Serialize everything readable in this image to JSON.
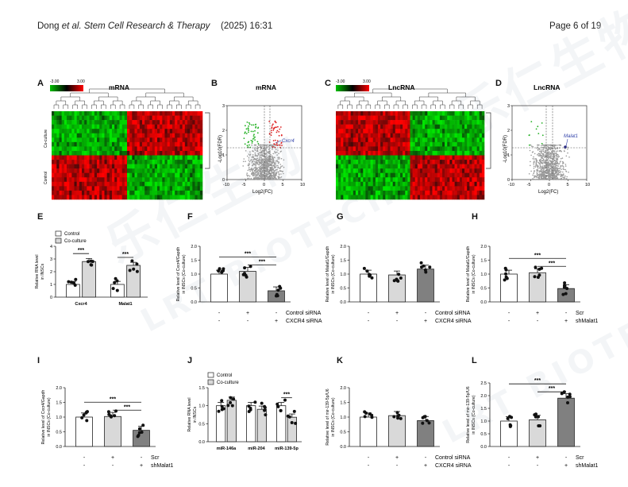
{
  "header": {
    "author": "Dong",
    "et_al": "et al.",
    "journal": "Stem Cell Research & Therapy",
    "year_ref": "(2025) 16:31",
    "page": "Page 6 of 19"
  },
  "watermark": {
    "line1": "乐仁生物",
    "line2": "LRT BIOTECH"
  },
  "panels": {
    "A": {
      "letter": "A",
      "title": "mRNA",
      "scale_min": "-3.00",
      "scale_max": "3.00",
      "row_labels": [
        "Co-culture",
        "Control"
      ]
    },
    "B": {
      "letter": "B",
      "title": "mRNA",
      "ylabel": "-Log10(FDR)",
      "xlabel": "Log2(FC)",
      "annotation": "Cxcr4",
      "xticks": [
        "-10",
        "-5",
        "0",
        "5",
        "10"
      ],
      "yticks": [
        "0",
        "1",
        "2",
        "3"
      ]
    },
    "C": {
      "letter": "C",
      "title": "LncRNA",
      "scale_min": "-3.00",
      "scale_max": "3.00"
    },
    "D": {
      "letter": "D",
      "title": "LncRNA",
      "ylabel": "-Log10(FDR)",
      "xlabel": "Log2(FC)",
      "annotation": "Malat1",
      "xticks": [
        "-10",
        "-5",
        "0",
        "5",
        "10"
      ],
      "yticks": [
        "0",
        "1",
        "2",
        "3"
      ]
    },
    "E": {
      "letter": "E"
    },
    "F": {
      "letter": "F"
    },
    "G": {
      "letter": "G"
    },
    "H": {
      "letter": "H"
    },
    "I": {
      "letter": "I"
    },
    "J": {
      "letter": "J"
    },
    "K": {
      "letter": "K"
    },
    "L": {
      "letter": "L"
    }
  },
  "chart_data": [
    {
      "panel": "E",
      "type": "bar",
      "ylabel": "Relative RNA level in INSCs",
      "ylim": [
        0,
        4
      ],
      "yticks": [
        0,
        1,
        2,
        3,
        4
      ],
      "categories": [
        "Cxcr4",
        "Malat1"
      ],
      "series": [
        {
          "name": "Control",
          "values": [
            1.0,
            1.0
          ]
        },
        {
          "name": "Co-culture",
          "values": [
            2.8,
            2.5
          ]
        }
      ],
      "significance": [
        "***",
        "***"
      ]
    },
    {
      "panel": "F",
      "type": "bar",
      "ylabel": "Relative level of Cxcr4/Gapdh in INSCs (Co-culture)",
      "ylim": [
        0,
        2.0
      ],
      "yticks": [
        0.0,
        0.5,
        1.0,
        1.5,
        2.0
      ],
      "values": [
        1.0,
        1.1,
        0.4
      ],
      "rows": [
        {
          "label": "Control siRNA",
          "signs": [
            "-",
            "+",
            "-"
          ]
        },
        {
          "label": "CXCR4 siRNA",
          "signs": [
            "-",
            "-",
            "+"
          ]
        }
      ],
      "significance": [
        "***",
        "***"
      ]
    },
    {
      "panel": "G",
      "type": "bar",
      "ylabel": "Relative level of Malat1/Gapdh in INSCs (Co-culture)",
      "ylim": [
        0,
        2.0
      ],
      "yticks": [
        0.0,
        0.5,
        1.0,
        1.5,
        2.0
      ],
      "values": [
        1.0,
        0.97,
        1.18
      ],
      "rows": [
        {
          "label": "Control siRNA",
          "signs": [
            "-",
            "+",
            "-"
          ]
        },
        {
          "label": "CXCR4 siRNA",
          "signs": [
            "-",
            "-",
            "+"
          ]
        }
      ],
      "significance": []
    },
    {
      "panel": "H",
      "type": "bar",
      "ylabel": "Relative level of Malat1/Gapdh in INSCs (Co-culture)",
      "ylim": [
        0,
        2.0
      ],
      "yticks": [
        0.0,
        0.5,
        1.0,
        1.5,
        2.0
      ],
      "values": [
        1.0,
        1.05,
        0.48
      ],
      "rows": [
        {
          "label": "Scr",
          "signs": [
            "-",
            "+",
            "-"
          ]
        },
        {
          "label": "shMalat1",
          "signs": [
            "-",
            "-",
            "+"
          ]
        }
      ],
      "significance": [
        "***",
        "***"
      ]
    },
    {
      "panel": "I",
      "type": "bar",
      "ylabel": "Relative level of Cxcr4/Gapdh in INSCs (Co-culture)",
      "ylim": [
        0,
        2.0
      ],
      "yticks": [
        0.0,
        0.5,
        1.0,
        1.5,
        2.0
      ],
      "values": [
        1.0,
        1.02,
        0.55
      ],
      "rows": [
        {
          "label": "Scr",
          "signs": [
            "-",
            "+",
            "-"
          ]
        },
        {
          "label": "shMalat1",
          "signs": [
            "-",
            "-",
            "+"
          ]
        }
      ],
      "significance": [
        "***",
        "***"
      ]
    },
    {
      "panel": "J",
      "type": "bar",
      "ylabel": "Relative RNA level in INSCs",
      "ylim": [
        0,
        1.5
      ],
      "yticks": [
        0.0,
        0.5,
        1.0,
        1.5
      ],
      "categories": [
        "miR-146a",
        "miR-204",
        "miR-139-5p"
      ],
      "series": [
        {
          "name": "Control",
          "values": [
            1.0,
            1.0,
            1.0
          ]
        },
        {
          "name": "Co-culture",
          "values": [
            1.15,
            0.9,
            0.68
          ]
        }
      ],
      "significance": [
        "",
        "",
        "***"
      ]
    },
    {
      "panel": "K",
      "type": "bar",
      "ylabel": "Relative level of mir-139-5p/U6 in INSCs (Co-culture)",
      "ylim": [
        0,
        2.0
      ],
      "yticks": [
        0.0,
        0.5,
        1.0,
        1.5,
        2.0
      ],
      "values": [
        1.0,
        1.05,
        0.88
      ],
      "rows": [
        {
          "label": "Control siRNA",
          "signs": [
            "-",
            "+",
            "-"
          ]
        },
        {
          "label": "CXCR4 siRNA",
          "signs": [
            "-",
            "-",
            "+"
          ]
        }
      ],
      "significance": []
    },
    {
      "panel": "L",
      "type": "bar",
      "ylabel": "Relative level of mir-139-5p/U6 in INSCs (Co-culture)",
      "ylim": [
        0,
        2.5
      ],
      "yticks": [
        0.0,
        0.5,
        1.0,
        1.5,
        2.0,
        2.5
      ],
      "values": [
        1.0,
        1.05,
        1.9
      ],
      "rows": [
        {
          "label": "Scr",
          "signs": [
            "-",
            "+",
            "-"
          ]
        },
        {
          "label": "shMalat1",
          "signs": [
            "-",
            "-",
            "+"
          ]
        }
      ],
      "significance": [
        "***",
        "***"
      ]
    }
  ]
}
